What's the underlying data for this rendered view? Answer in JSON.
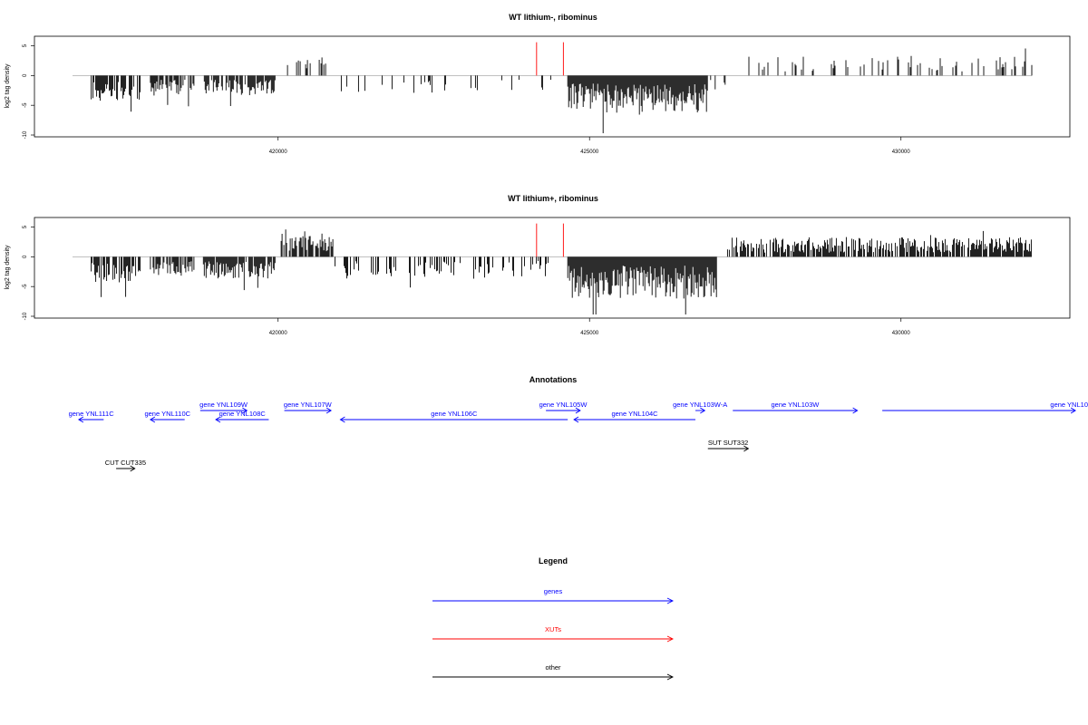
{
  "colors": {
    "genes": "#0000ff",
    "XUTs": "#ff0000",
    "other": "#000000",
    "marker": "#ff0000",
    "bars": "#000000"
  },
  "chart_data": [
    {
      "type": "bar",
      "title": "WT lithium-, ribominus",
      "ylabel": "log2 tag density",
      "ylim": [
        -10,
        6
      ],
      "yticks": [
        -10,
        -5,
        0,
        5
      ],
      "xlim": [
        416300,
        432800
      ],
      "xticks": [
        420000,
        425000,
        430000
      ],
      "markers_x": [
        424150,
        424580
      ],
      "density_regions": [
        {
          "start": 417000,
          "end": 417800,
          "sign": -1,
          "mean": 2.6,
          "density": 0.75
        },
        {
          "start": 417950,
          "end": 418650,
          "sign": -1,
          "mean": 2.0,
          "density": 0.75
        },
        {
          "start": 418800,
          "end": 419950,
          "sign": -1,
          "mean": 2.0,
          "density": 0.75
        },
        {
          "start": 420050,
          "end": 420850,
          "sign": 1,
          "mean": 2.0,
          "density": 0.3
        },
        {
          "start": 421000,
          "end": 424400,
          "sign": -1,
          "mean": 1.8,
          "density": 0.08
        },
        {
          "start": 424650,
          "end": 426900,
          "sign": -1,
          "mean": 3.8,
          "density": 1.0
        },
        {
          "start": 426900,
          "end": 427200,
          "sign": -1,
          "mean": 1.5,
          "density": 0.2
        },
        {
          "start": 427500,
          "end": 432100,
          "sign": 1,
          "mean": 2.0,
          "density": 0.2
        }
      ]
    },
    {
      "type": "bar",
      "title": "WT lithium+, ribominus",
      "ylabel": "log2 tag density",
      "ylim": [
        -10,
        6
      ],
      "yticks": [
        -10,
        -5,
        0,
        5
      ],
      "xlim": [
        416300,
        432800
      ],
      "xticks": [
        420000,
        425000,
        430000
      ],
      "markers_x": [
        424150,
        424580
      ],
      "density_regions": [
        {
          "start": 417000,
          "end": 417800,
          "sign": -1,
          "mean": 2.6,
          "density": 0.8
        },
        {
          "start": 417950,
          "end": 418650,
          "sign": -1,
          "mean": 2.0,
          "density": 0.8
        },
        {
          "start": 418800,
          "end": 419950,
          "sign": -1,
          "mean": 2.2,
          "density": 0.8
        },
        {
          "start": 420050,
          "end": 420900,
          "sign": 1,
          "mean": 2.2,
          "density": 0.7
        },
        {
          "start": 420900,
          "end": 424400,
          "sign": -1,
          "mean": 2.0,
          "density": 0.35
        },
        {
          "start": 424650,
          "end": 427050,
          "sign": -1,
          "mean": 4.2,
          "density": 1.0
        },
        {
          "start": 427200,
          "end": 432100,
          "sign": 1,
          "mean": 2.0,
          "density": 0.75
        }
      ]
    }
  ],
  "annotations": {
    "title": "Annotations",
    "features": [
      {
        "label": "gene YNL111C",
        "start": 416800,
        "end": 417200,
        "strand": "-",
        "row": 2,
        "color": "genes"
      },
      {
        "label": "gene YNL110C",
        "start": 417950,
        "end": 418500,
        "strand": "-",
        "row": 2,
        "color": "genes"
      },
      {
        "label": "gene YNL109W",
        "start": 418750,
        "end": 419500,
        "strand": "+",
        "row": 1,
        "color": "genes"
      },
      {
        "label": "gene YNL108C",
        "start": 419000,
        "end": 419850,
        "strand": "-",
        "row": 2,
        "color": "genes"
      },
      {
        "label": "gene YNL107W",
        "start": 420100,
        "end": 420850,
        "strand": "+",
        "row": 1,
        "color": "genes"
      },
      {
        "label": "gene YNL106C",
        "start": 421000,
        "end": 424650,
        "strand": "-",
        "row": 2,
        "color": "genes"
      },
      {
        "label": "gene YNL105W",
        "start": 424300,
        "end": 424850,
        "strand": "+",
        "row": 1,
        "color": "genes"
      },
      {
        "label": "gene YNL104C",
        "start": 424750,
        "end": 426700,
        "strand": "-",
        "row": 2,
        "color": "genes"
      },
      {
        "label": "gene YNL103W-A",
        "start": 426700,
        "end": 426850,
        "strand": "+",
        "row": 1,
        "color": "genes"
      },
      {
        "label": "gene YNL103W",
        "start": 427300,
        "end": 429300,
        "strand": "+",
        "row": 1,
        "color": "genes"
      },
      {
        "label": "gene YNL10",
        "start": 429700,
        "end": 432800,
        "strand": "+",
        "row": 1,
        "color": "genes",
        "label_align": "end"
      },
      {
        "label": "SUT SUT332",
        "start": 426900,
        "end": 427550,
        "strand": "+",
        "row": 3,
        "color": "other"
      },
      {
        "label": "CUT CUT335",
        "start": 417400,
        "end": 417700,
        "strand": "+",
        "row": 4,
        "color": "other"
      }
    ]
  },
  "legend": {
    "title": "Legend",
    "items": [
      {
        "label": "genes",
        "color": "genes"
      },
      {
        "label": "XUTs",
        "color": "XUTs"
      },
      {
        "label": "other",
        "color": "other"
      }
    ]
  }
}
